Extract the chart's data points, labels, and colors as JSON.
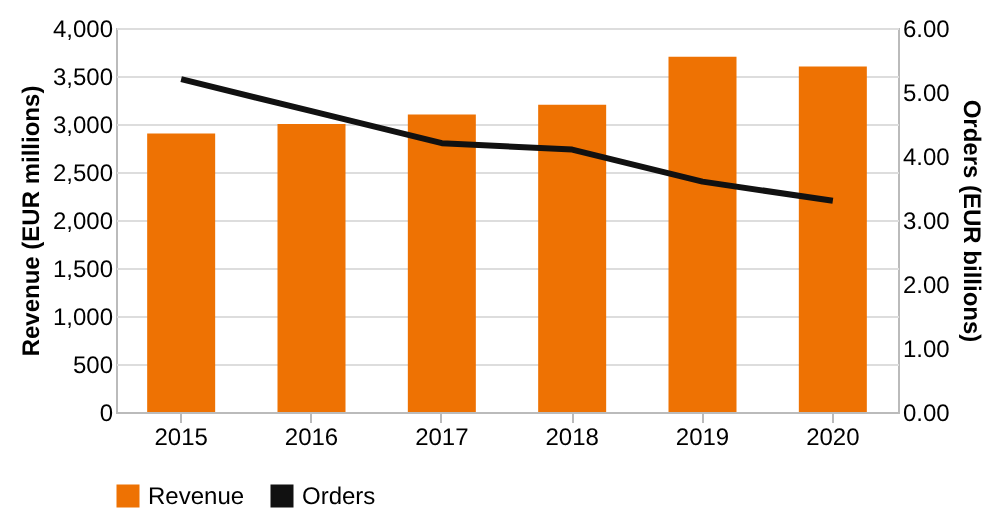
{
  "chart_data": {
    "type": "bar",
    "categories": [
      "2015",
      "2016",
      "2017",
      "2018",
      "2019",
      "2020"
    ],
    "series": [
      {
        "name": "Revenue",
        "color": "#ee7203",
        "values": [
          2900,
          3000,
          3100,
          3200,
          3700,
          3600
        ]
      },
      {
        "name": "Orders",
        "type": "line",
        "axis": "y2",
        "color": "#111111",
        "values": [
          5.2,
          4.7,
          4.2,
          4.1,
          3.6,
          3.3
        ]
      }
    ],
    "ylabel": "Revenue (EUR millions)",
    "y2label": "Orders (EUR billions)",
    "ylim": [
      0,
      4000
    ],
    "yticks": [
      0,
      {
        "value": 500,
        "label": "500"
      },
      {
        "value": 1000,
        "label": "1,000"
      },
      {
        "value": 1500,
        "label": "1,500"
      },
      {
        "value": 2000,
        "label": "2,000"
      },
      {
        "value": 2500,
        "label": "2,500"
      },
      {
        "value": 3000,
        "label": "3,000"
      },
      {
        "value": 3500,
        "label": "3,500"
      },
      {
        "value": 4000,
        "label": "4,000"
      }
    ],
    "y2lim": [
      0,
      6
    ],
    "y2ticks": [
      {
        "value": 0,
        "label": "0.00"
      },
      {
        "value": 1,
        "label": "1.00"
      },
      {
        "value": 2,
        "label": "2.00"
      },
      {
        "value": 3,
        "label": "3.00"
      },
      {
        "value": 4,
        "label": "4.00"
      },
      {
        "value": 5,
        "label": "5.00"
      },
      {
        "value": 6,
        "label": "6.00"
      }
    ],
    "grid": "y",
    "legend": "bottom",
    "line_style": "solid",
    "marker": "none"
  }
}
